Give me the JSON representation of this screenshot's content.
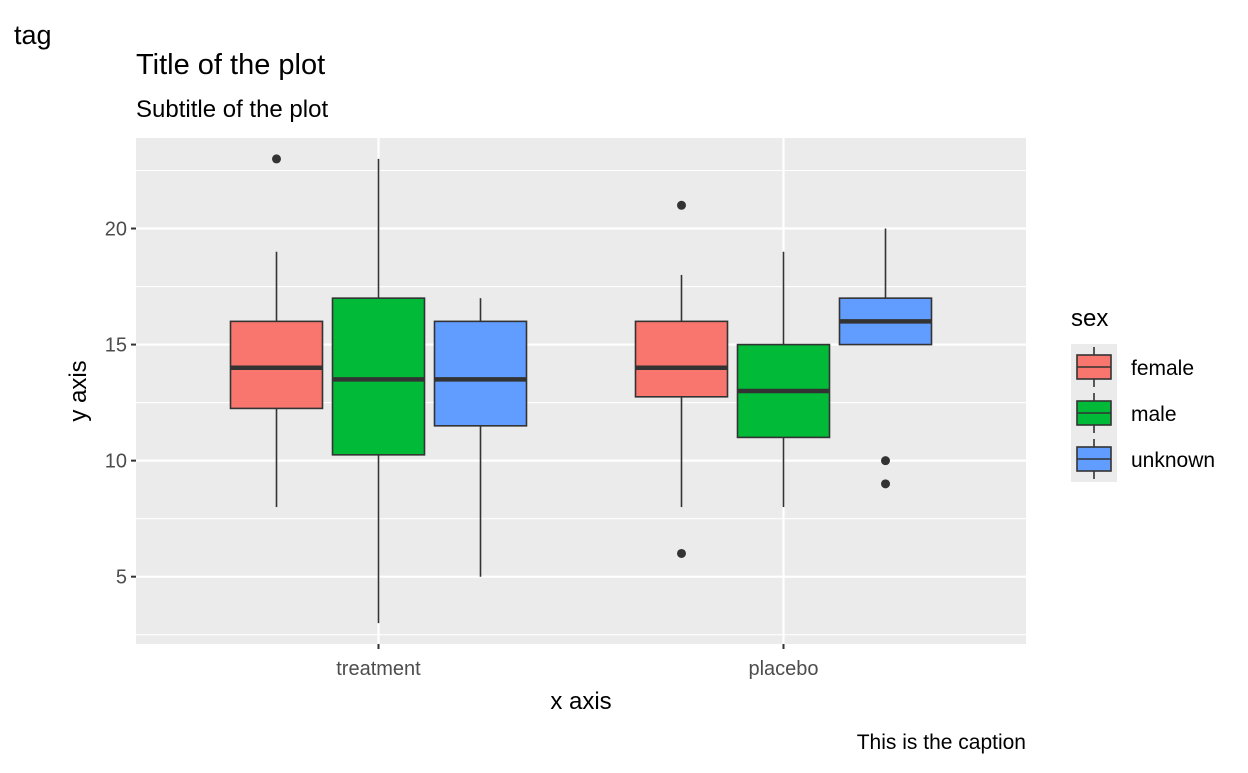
{
  "chart_data": {
    "type": "boxplot",
    "tag": "tag",
    "title": "Title of the plot",
    "subtitle": "Subtitle of the plot",
    "caption": "This is the caption",
    "xlabel": "x axis",
    "ylabel": "y axis",
    "categories": [
      "treatment",
      "placebo"
    ],
    "y_ticks": [
      5,
      10,
      15,
      20
    ],
    "ylim": [
      2.1,
      23.9
    ],
    "grid": true,
    "legend": {
      "title": "sex",
      "position": "right",
      "entries": [
        "female",
        "male",
        "unknown"
      ]
    },
    "colors": {
      "female": "#F8766D",
      "male": "#00BA38",
      "unknown": "#619CFF",
      "panel_background": "#EBEBEB",
      "grid": "#FFFFFF",
      "box_outline": "#333333"
    },
    "series": [
      {
        "name": "female",
        "boxes": [
          {
            "category": "treatment",
            "whisker_low": 8,
            "q1": 12.25,
            "median": 14,
            "q3": 16,
            "whisker_high": 19,
            "outliers": [
              23
            ]
          },
          {
            "category": "placebo",
            "whisker_low": 8,
            "q1": 12.75,
            "median": 14,
            "q3": 16,
            "whisker_high": 18,
            "outliers": [
              6,
              21
            ]
          }
        ]
      },
      {
        "name": "male",
        "boxes": [
          {
            "category": "treatment",
            "whisker_low": 3,
            "q1": 10.25,
            "median": 13.5,
            "q3": 17,
            "whisker_high": 23,
            "outliers": []
          },
          {
            "category": "placebo",
            "whisker_low": 8,
            "q1": 11,
            "median": 13,
            "q3": 15,
            "whisker_high": 19,
            "outliers": []
          }
        ]
      },
      {
        "name": "unknown",
        "boxes": [
          {
            "category": "treatment",
            "whisker_low": 5,
            "q1": 11.5,
            "median": 13.5,
            "q3": 16,
            "whisker_high": 17,
            "outliers": []
          },
          {
            "category": "placebo",
            "whisker_low": 15,
            "q1": 15,
            "median": 16,
            "q3": 17,
            "whisker_high": 20,
            "outliers": [
              9,
              10
            ]
          }
        ]
      }
    ]
  }
}
